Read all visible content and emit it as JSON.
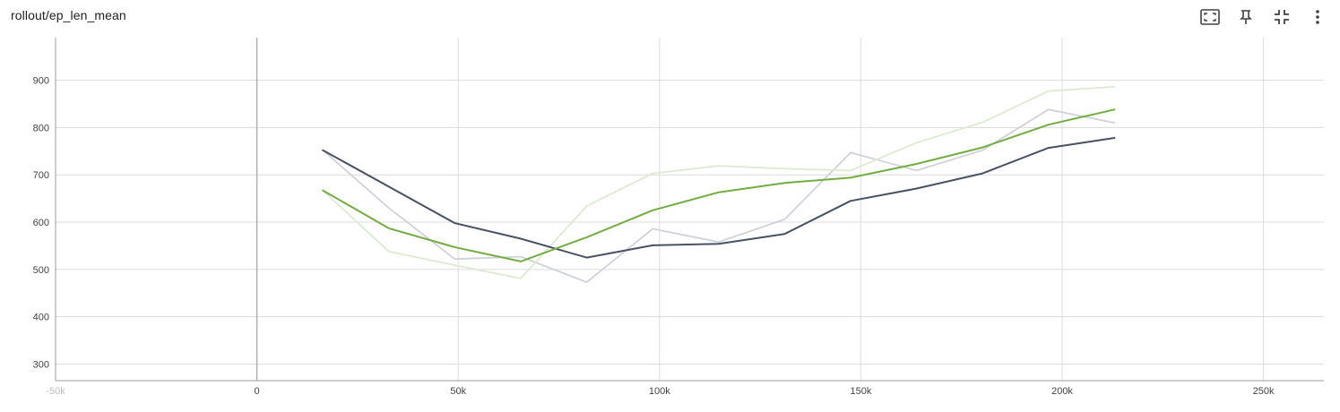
{
  "card": {
    "title": "rollout/ep_len_mean"
  },
  "toolbar": {
    "icons": [
      "fit-domain-icon",
      "pin-icon",
      "collapse-icon",
      "more-vert-icon"
    ]
  },
  "colors": {
    "grid": "#dcdcdc",
    "axis": "#9e9e9e",
    "zero_line": "#b0b0b0",
    "series_dark": "#485264",
    "series_dark_raw": "#cfd2db",
    "series_green": "#72ae43",
    "series_green_raw": "#dcebcf"
  },
  "chart_data": {
    "type": "line",
    "title": "rollout/ep_len_mean",
    "xlim": [
      -50000,
      265000
    ],
    "ylim": [
      265,
      990
    ],
    "x_ticks": [
      {
        "value": -50000,
        "label": "-50k",
        "faded": true
      },
      {
        "value": 0,
        "label": "0",
        "faded": false
      },
      {
        "value": 50000,
        "label": "50k",
        "faded": false
      },
      {
        "value": 100000,
        "label": "100k",
        "faded": false
      },
      {
        "value": 150000,
        "label": "150k",
        "faded": false
      },
      {
        "value": 200000,
        "label": "200k",
        "faded": false
      },
      {
        "value": 250000,
        "label": "250k",
        "faded": false
      }
    ],
    "y_ticks": [
      300,
      400,
      500,
      600,
      700,
      800,
      900
    ],
    "grid": true,
    "series": [
      {
        "style": "raw",
        "color": "#cfd2db",
        "x": [
          16384,
          32768,
          49152,
          65536,
          81920,
          98304,
          114688,
          131072,
          147456,
          163840,
          180224,
          196608,
          212992
        ],
        "y": [
          752,
          630,
          522,
          527,
          473,
          586,
          558,
          606,
          747,
          709,
          752,
          838,
          810
        ]
      },
      {
        "style": "raw",
        "color": "#dcebcf",
        "x": [
          16384,
          32768,
          49152,
          65536,
          81920,
          98304,
          114688,
          131072,
          147456,
          163840,
          180224,
          196608,
          212992
        ],
        "y": [
          667,
          538,
          509,
          481,
          634,
          703,
          719,
          713,
          709,
          768,
          811,
          877,
          886
        ]
      },
      {
        "style": "smoothed",
        "color": "#485264",
        "x": [
          16384,
          49152,
          65536,
          81920,
          98304,
          114688,
          131072,
          147456,
          163840,
          180224,
          196608,
          212992
        ],
        "y": [
          752,
          598,
          565,
          525,
          551,
          554,
          575,
          645,
          671,
          703,
          757,
          778
        ]
      },
      {
        "style": "smoothed",
        "color": "#72ae43",
        "x": [
          16384,
          32768,
          49152,
          65536,
          81920,
          98304,
          114688,
          131072,
          147456,
          163840,
          180224,
          196608,
          212992
        ],
        "y": [
          667,
          587,
          547,
          517,
          568,
          625,
          663,
          683,
          694,
          723,
          758,
          806,
          838
        ]
      }
    ]
  }
}
